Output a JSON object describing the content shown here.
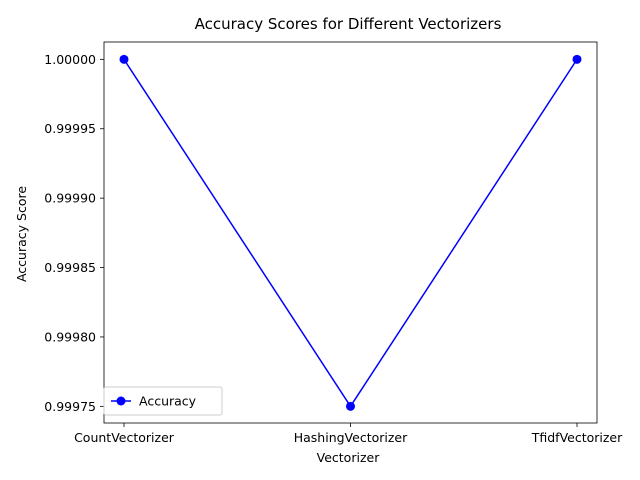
{
  "chart_data": {
    "type": "line",
    "title": "Accuracy Scores for Different Vectorizers",
    "xlabel": "Vectorizer",
    "ylabel": "Accuracy Score",
    "categories": [
      "CountVectorizer",
      "HashingVectorizer",
      "TfidfVectorizer"
    ],
    "series": [
      {
        "name": "Accuracy",
        "values": [
          1.0,
          0.99975,
          1.0
        ],
        "color": "#0000ff",
        "marker": "circle"
      }
    ],
    "ylim": [
      0.999738,
      1.0000125
    ],
    "yticks": [
      {
        "value": 0.99975,
        "label": "0.99975"
      },
      {
        "value": 0.9998,
        "label": "0.99980"
      },
      {
        "value": 0.99985,
        "label": "0.99985"
      },
      {
        "value": 0.9999,
        "label": "0.99990"
      },
      {
        "value": 0.99995,
        "label": "0.99995"
      },
      {
        "value": 1.0,
        "label": "1.00000"
      }
    ],
    "grid": false,
    "legend": {
      "position": "lower-left"
    }
  }
}
